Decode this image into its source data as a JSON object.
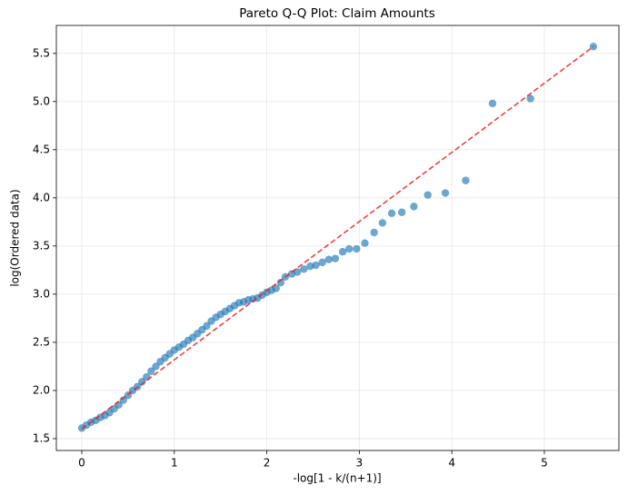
{
  "chart_data": {
    "type": "scatter",
    "title": "Pareto Q-Q Plot: Claim Amounts",
    "x_label": "-log[1 - k/(n+1)]",
    "y_label": "log(Ordered data)",
    "xlim": [
      -0.275,
      5.806
    ],
    "ylim": [
      1.377,
      5.79
    ],
    "xticks": [
      0,
      1,
      2,
      3,
      4,
      5
    ],
    "yticks": [
      1.5,
      {
        "value": 2,
        "label": "2.0"
      },
      2.5,
      {
        "value": 3,
        "label": "3.0"
      },
      3.5,
      {
        "value": 4,
        "label": "4.0"
      },
      4.5,
      {
        "value": 5,
        "label": "5.0"
      },
      5.5
    ],
    "grid": true,
    "series": [
      {
        "type": "scatter",
        "color": "#1f77b4",
        "x": [
          0.0,
          0.05,
          0.1,
          0.15,
          0.2,
          0.25,
          0.3,
          0.35,
          0.4,
          0.45,
          0.5,
          0.55,
          0.6,
          0.65,
          0.7,
          0.75,
          0.8,
          0.85,
          0.9,
          0.95,
          1.0,
          1.05,
          1.1,
          1.15,
          1.2,
          1.25,
          1.3,
          1.35,
          1.4,
          1.45,
          1.5,
          1.55,
          1.6,
          1.65,
          1.7,
          1.75,
          1.8,
          1.85,
          1.9,
          1.95,
          2.0,
          2.05,
          2.1,
          2.15,
          2.2,
          2.27,
          2.33,
          2.4,
          2.47,
          2.53,
          2.6,
          2.67,
          2.74,
          2.82,
          2.89,
          2.97,
          3.06,
          3.16,
          3.25,
          3.35,
          3.46,
          3.59,
          3.74,
          3.93,
          4.15,
          4.44,
          4.85,
          5.53
        ],
        "values": [
          1.61,
          1.64,
          1.67,
          1.69,
          1.72,
          1.74,
          1.77,
          1.81,
          1.85,
          1.9,
          1.95,
          2.0,
          2.04,
          2.09,
          2.14,
          2.2,
          2.25,
          2.3,
          2.34,
          2.38,
          2.42,
          2.45,
          2.48,
          2.52,
          2.55,
          2.59,
          2.63,
          2.67,
          2.72,
          2.76,
          2.79,
          2.82,
          2.85,
          2.88,
          2.91,
          2.92,
          2.94,
          2.95,
          2.96,
          2.99,
          3.02,
          3.04,
          3.06,
          3.12,
          3.18,
          3.21,
          3.23,
          3.26,
          3.29,
          3.3,
          3.33,
          3.36,
          3.37,
          3.44,
          3.47,
          3.47,
          3.53,
          3.64,
          3.74,
          3.84,
          3.85,
          3.91,
          4.03,
          4.05,
          4.18,
          4.98,
          5.03,
          5.57
        ]
      },
      {
        "type": "line",
        "color": "#e8211d",
        "linestyle": "dashed",
        "x": [
          0,
          5.53
        ],
        "values": [
          1.6,
          5.57
        ]
      }
    ]
  }
}
